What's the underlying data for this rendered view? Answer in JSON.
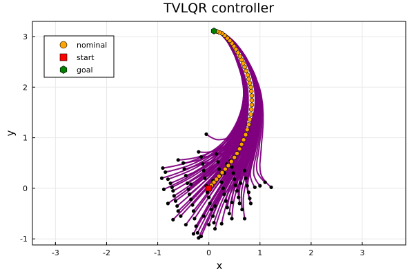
{
  "chart_data": {
    "type": "line",
    "title": "TVLQR controller",
    "xlabel": "x",
    "ylabel": "y",
    "xlim": [
      -3.45,
      3.85
    ],
    "ylim": [
      -1.12,
      3.3
    ],
    "xticks": [
      "-3",
      "-2",
      "-1",
      "0",
      "1",
      "2",
      "3"
    ],
    "xtick_values": [
      -3,
      -2,
      -1,
      0,
      1,
      2,
      3
    ],
    "yticks": [
      "-1",
      "0",
      "1",
      "2",
      "3"
    ],
    "ytick_values": [
      -1,
      0,
      1,
      2,
      3
    ],
    "grid": true,
    "legend_position": "top-left",
    "legend": [
      {
        "label": "nominal",
        "marker": "circle",
        "color": "#ffa500"
      },
      {
        "label": "start",
        "marker": "square",
        "color": "#ff0000"
      },
      {
        "label": "goal",
        "marker": "hexagon",
        "color": "#008000"
      }
    ],
    "series": [
      {
        "name": "nominal",
        "marker": "circle",
        "color": "#ffa500",
        "x": [
          0.0,
          0.05,
          0.1,
          0.15,
          0.2,
          0.26,
          0.32,
          0.38,
          0.44,
          0.5,
          0.55,
          0.6,
          0.64,
          0.68,
          0.72,
          0.75,
          0.78,
          0.8,
          0.82,
          0.83,
          0.84,
          0.84,
          0.84,
          0.83,
          0.82,
          0.8,
          0.78,
          0.76,
          0.73,
          0.7,
          0.67,
          0.64,
          0.61,
          0.57,
          0.53,
          0.49,
          0.45,
          0.41,
          0.36,
          0.31,
          0.26,
          0.21,
          0.16,
          0.1
        ],
        "y": [
          0.0,
          0.06,
          0.12,
          0.18,
          0.24,
          0.31,
          0.38,
          0.45,
          0.53,
          0.61,
          0.69,
          0.78,
          0.87,
          0.96,
          1.06,
          1.16,
          1.26,
          1.36,
          1.46,
          1.56,
          1.65,
          1.74,
          1.83,
          1.92,
          2.0,
          2.08,
          2.16,
          2.24,
          2.32,
          2.4,
          2.47,
          2.54,
          2.61,
          2.68,
          2.75,
          2.81,
          2.87,
          2.92,
          2.97,
          3.02,
          3.06,
          3.08,
          3.1,
          3.11
        ]
      }
    ],
    "start": {
      "x": 0.0,
      "y": 0.0,
      "color": "#ff0000"
    },
    "goal": {
      "x": 0.1,
      "y": 3.11,
      "color": "#008000"
    },
    "trajectories": {
      "color": "#800080",
      "endpoint_color": "#000000",
      "final_state": {
        "x": 0.1,
        "y": 3.11
      },
      "samples": [
        [
          -0.9,
          0.4
        ],
        [
          -0.85,
          0.32
        ],
        [
          -0.8,
          0.18
        ],
        [
          -0.75,
          0.1
        ],
        [
          -0.72,
          0.02
        ],
        [
          -0.7,
          -0.05
        ],
        [
          -0.68,
          -0.15
        ],
        [
          -0.65,
          -0.25
        ],
        [
          -0.62,
          -0.35
        ],
        [
          -0.6,
          -0.45
        ],
        [
          -0.55,
          -0.55
        ],
        [
          -0.5,
          0.5
        ],
        [
          -0.48,
          0.38
        ],
        [
          -0.45,
          0.25
        ],
        [
          -0.42,
          0.1
        ],
        [
          -0.4,
          -0.02
        ],
        [
          -0.38,
          -0.12
        ],
        [
          -0.35,
          -0.22
        ],
        [
          -0.32,
          -0.33
        ],
        [
          -0.3,
          -0.45
        ],
        [
          -0.28,
          -0.6
        ],
        [
          -0.25,
          -0.75
        ],
        [
          -0.22,
          -0.88
        ],
        [
          -0.2,
          -0.98
        ],
        [
          -0.15,
          0.62
        ],
        [
          -0.12,
          0.48
        ],
        [
          -0.1,
          0.35
        ],
        [
          -0.08,
          0.2
        ],
        [
          -0.05,
          0.05
        ],
        [
          -0.03,
          -0.08
        ],
        [
          0.0,
          -0.18
        ],
        [
          0.02,
          -0.3
        ],
        [
          0.05,
          -0.42
        ],
        [
          0.08,
          -0.55
        ],
        [
          0.1,
          -0.68
        ],
        [
          0.12,
          -0.8
        ],
        [
          0.15,
          0.68
        ],
        [
          0.18,
          0.52
        ],
        [
          0.2,
          0.38
        ],
        [
          0.22,
          0.25
        ],
        [
          0.25,
          0.12
        ],
        [
          0.28,
          0.0
        ],
        [
          0.3,
          -0.12
        ],
        [
          0.33,
          -0.25
        ],
        [
          0.36,
          -0.38
        ],
        [
          0.4,
          -0.5
        ],
        [
          0.45,
          -0.6
        ],
        [
          0.42,
          0.55
        ],
        [
          0.45,
          0.42
        ],
        [
          0.48,
          0.3
        ],
        [
          0.5,
          0.18
        ],
        [
          0.52,
          0.06
        ],
        [
          0.55,
          -0.05
        ],
        [
          0.58,
          -0.18
        ],
        [
          0.6,
          -0.3
        ],
        [
          0.65,
          -0.42
        ],
        [
          0.7,
          -0.6
        ],
        [
          0.7,
          0.35
        ],
        [
          0.72,
          0.2
        ],
        [
          0.75,
          0.05
        ],
        [
          0.78,
          -0.08
        ],
        [
          0.8,
          -0.2
        ],
        [
          0.82,
          -0.3
        ],
        [
          0.9,
          0.02
        ],
        [
          1.0,
          0.05
        ],
        [
          1.1,
          0.12
        ],
        [
          1.22,
          0.02
        ],
        [
          -0.05,
          1.07
        ],
        [
          -0.92,
          0.2
        ],
        [
          -0.88,
          -0.02
        ],
        [
          -0.8,
          -0.3
        ],
        [
          -0.7,
          -0.62
        ],
        [
          -0.45,
          -0.72
        ],
        [
          -0.3,
          -0.9
        ],
        [
          -0.15,
          -0.95
        ],
        [
          0.0,
          -0.72
        ],
        [
          0.25,
          -0.7
        ],
        [
          0.45,
          -0.28
        ],
        [
          0.62,
          0.1
        ],
        [
          0.35,
          0.48
        ],
        [
          -0.2,
          0.72
        ],
        [
          -0.6,
          0.56
        ],
        [
          -0.35,
          0.08
        ],
        [
          0.08,
          0.15
        ],
        [
          0.12,
          -0.35
        ],
        [
          -0.1,
          -0.55
        ],
        [
          0.3,
          0.3
        ]
      ]
    }
  }
}
